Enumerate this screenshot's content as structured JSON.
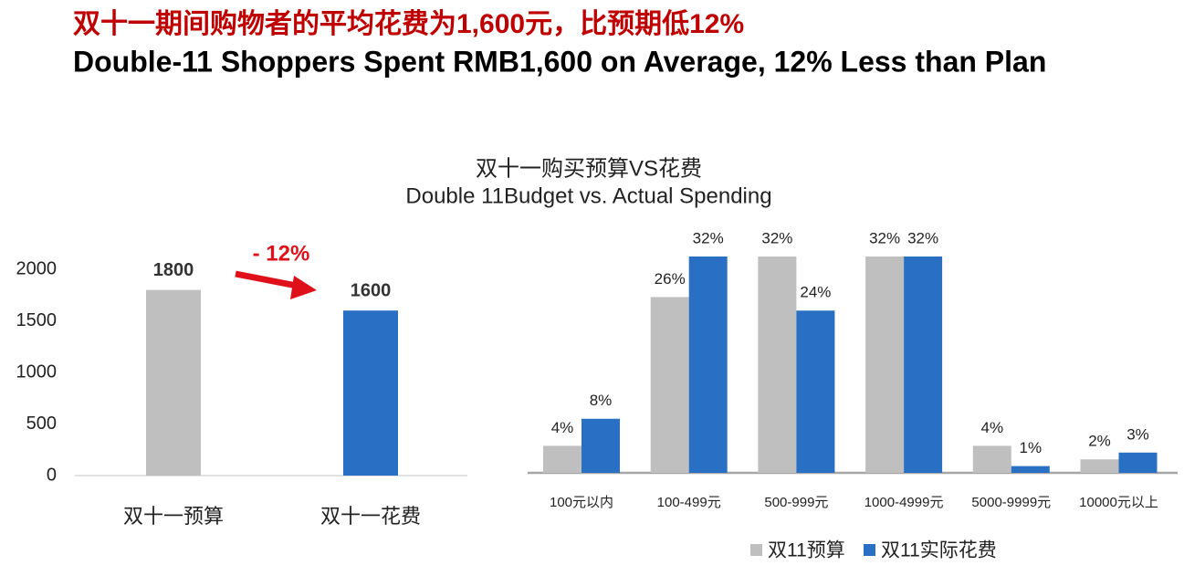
{
  "header": {
    "title_cn": "双十一期间购物者的平均花费为1,600元，比预期低12%",
    "title_en": "Double-11 Shoppers Spent RMB1,600 on Average, 12% Less than Plan",
    "subtitle_cn": "双十一购买预算VS花费",
    "subtitle_en": "Double 11Budget vs. Actual Spending"
  },
  "chart_data": [
    {
      "type": "bar",
      "categories": [
        "双十一预算",
        "双十一花费"
      ],
      "values": [
        1800,
        1600
      ],
      "colors": [
        "#bfbfbf",
        "#2970c4"
      ],
      "ylim": [
        0,
        2000
      ],
      "yticks": [
        0,
        500,
        1000,
        1500,
        2000
      ],
      "annotation": "- 12%"
    },
    {
      "type": "grouped_bar",
      "categories": [
        "100元以内",
        "100-499元",
        "500-999元",
        "1000-4999元",
        "5000-9999元",
        "10000元以上"
      ],
      "series": [
        {
          "name": "双11预算",
          "color": "#bfbfbf",
          "values": [
            4,
            26,
            32,
            32,
            4,
            2
          ],
          "value_labels": [
            "4%",
            "26%",
            "32%",
            "32%",
            "4%",
            "2%"
          ]
        },
        {
          "name": "双11实际花费",
          "color": "#2970c4",
          "values": [
            8,
            32,
            24,
            32,
            1,
            3
          ],
          "value_labels": [
            "8%",
            "32%",
            "24%",
            "32%",
            "1%",
            "3%"
          ]
        }
      ],
      "legend": "bottom"
    }
  ]
}
